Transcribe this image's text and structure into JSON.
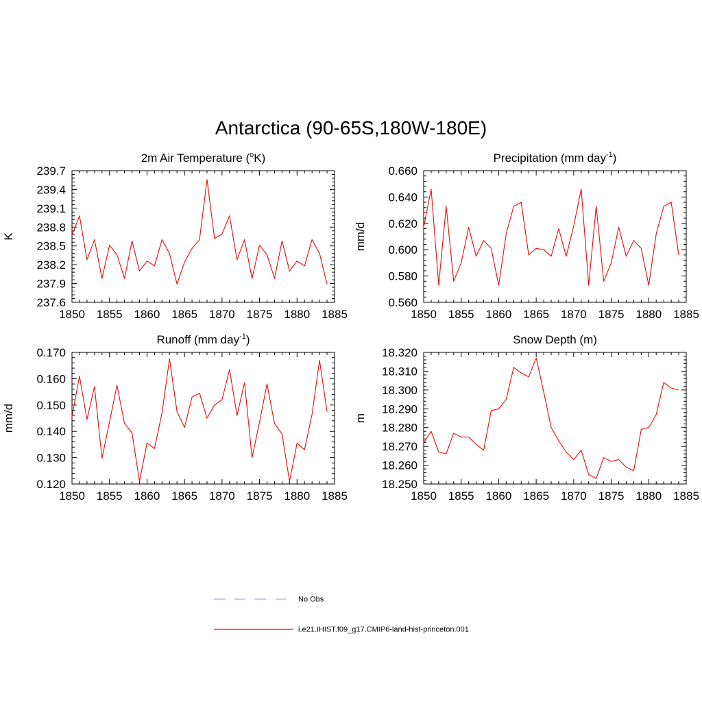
{
  "title": "Antarctica (90-65S,180W-180E)",
  "colors": {
    "model_line": "#ff0000",
    "obs_line": "#a0a0ff",
    "axis": "#000000"
  },
  "legend": {
    "entries": [
      {
        "label": "No Obs",
        "style": "dashed",
        "color": "#a0a0ff"
      },
      {
        "label": "i.e21.IHIST.f09_g17.CMIP6-land-hist-princeton.001",
        "style": "solid",
        "color": "#ff0000"
      }
    ]
  },
  "chart_data": [
    {
      "type": "line",
      "title": "2m Air Temperature (°K)",
      "title_parts": {
        "main": "2m Air Temperature (",
        "sup": "o",
        "tail": "K)"
      },
      "xlabel": "",
      "ylabel": "K",
      "xlim": [
        1850,
        1885
      ],
      "ylim": [
        237.6,
        239.7
      ],
      "xticks": [
        "1850",
        "1855",
        "1860",
        "1865",
        "1870",
        "1875",
        "1880",
        "1885"
      ],
      "yticks": [
        "237.6",
        "237.9",
        "238.2",
        "238.5",
        "238.8",
        "239.1",
        "239.4",
        "239.7"
      ],
      "x": [
        1850,
        1851,
        1852,
        1853,
        1854,
        1855,
        1856,
        1857,
        1858,
        1859,
        1860,
        1861,
        1862,
        1863,
        1864,
        1865,
        1866,
        1867,
        1868,
        1869,
        1870,
        1871,
        1872,
        1873,
        1874,
        1875,
        1876,
        1877,
        1878,
        1879,
        1880,
        1881,
        1882,
        1883,
        1884
      ],
      "series": [
        {
          "values": [
            238.67,
            238.98,
            238.28,
            238.6,
            237.98,
            238.51,
            238.36,
            237.98,
            238.58,
            238.1,
            238.26,
            238.18,
            238.6,
            238.38,
            237.89,
            238.24,
            238.46,
            238.6,
            239.56,
            238.62,
            238.69,
            238.98,
            238.28,
            238.6,
            237.98,
            238.51,
            238.36,
            237.98,
            238.58,
            238.1,
            238.26,
            238.18,
            238.6,
            238.38,
            237.89
          ]
        }
      ]
    },
    {
      "type": "line",
      "title": "Precipitation (mm day-1)",
      "title_parts": {
        "main": "Precipitation (mm day",
        "sup": "-1",
        "tail": ")"
      },
      "xlabel": "",
      "ylabel": "mm/d",
      "xlim": [
        1850,
        1885
      ],
      "ylim": [
        0.56,
        0.66
      ],
      "xticks": [
        "1850",
        "1855",
        "1860",
        "1865",
        "1870",
        "1875",
        "1880",
        "1885"
      ],
      "yticks": [
        "0.560",
        "0.580",
        "0.600",
        "0.620",
        "0.640",
        "0.660"
      ],
      "x": [
        1850,
        1851,
        1852,
        1853,
        1854,
        1855,
        1856,
        1857,
        1858,
        1859,
        1860,
        1861,
        1862,
        1863,
        1864,
        1865,
        1866,
        1867,
        1868,
        1869,
        1870,
        1871,
        1872,
        1873,
        1874,
        1875,
        1876,
        1877,
        1878,
        1879,
        1880,
        1881,
        1882,
        1883,
        1884
      ],
      "series": [
        {
          "values": [
            0.617,
            0.646,
            0.573,
            0.633,
            0.576,
            0.59,
            0.617,
            0.595,
            0.607,
            0.601,
            0.573,
            0.612,
            0.633,
            0.636,
            0.596,
            0.601,
            0.6,
            0.595,
            0.616,
            0.595,
            0.618,
            0.646,
            0.573,
            0.633,
            0.576,
            0.59,
            0.617,
            0.595,
            0.607,
            0.601,
            0.573,
            0.612,
            0.633,
            0.636,
            0.596
          ]
        }
      ]
    },
    {
      "type": "line",
      "title": "Runoff (mm day-1)",
      "title_parts": {
        "main": "Runoff (mm day",
        "sup": "-1",
        "tail": ")"
      },
      "xlabel": "",
      "ylabel": "mm/d",
      "xlim": [
        1850,
        1885
      ],
      "ylim": [
        0.12,
        0.17
      ],
      "xticks": [
        "1850",
        "1855",
        "1860",
        "1865",
        "1870",
        "1875",
        "1880",
        "1885"
      ],
      "yticks": [
        "0.120",
        "0.130",
        "0.140",
        "0.150",
        "0.160",
        "0.170"
      ],
      "x": [
        1850,
        1851,
        1852,
        1853,
        1854,
        1855,
        1856,
        1857,
        1858,
        1859,
        1860,
        1861,
        1862,
        1863,
        1864,
        1865,
        1866,
        1867,
        1868,
        1869,
        1870,
        1871,
        1872,
        1873,
        1874,
        1875,
        1876,
        1877,
        1878,
        1879,
        1880,
        1881,
        1882,
        1883,
        1884
      ],
      "series": [
        {
          "values": [
            0.1455,
            0.161,
            0.1445,
            0.157,
            0.1297,
            0.1435,
            0.1575,
            0.143,
            0.1395,
            0.121,
            0.1355,
            0.1335,
            0.147,
            0.1675,
            0.1475,
            0.1415,
            0.153,
            0.1545,
            0.145,
            0.15,
            0.152,
            0.1635,
            0.146,
            0.1585,
            0.13,
            0.1435,
            0.158,
            0.143,
            0.139,
            0.121,
            0.1355,
            0.133,
            0.1465,
            0.167,
            0.1475
          ]
        }
      ]
    },
    {
      "type": "line",
      "title": "Snow Depth (m)",
      "title_parts": {
        "main": "Snow Depth (m)",
        "sup": "",
        "tail": ""
      },
      "xlabel": "",
      "ylabel": "m",
      "xlim": [
        1850,
        1885
      ],
      "ylim": [
        18.25,
        18.32
      ],
      "xticks": [
        "1850",
        "1855",
        "1860",
        "1865",
        "1870",
        "1875",
        "1880",
        "1885"
      ],
      "yticks": [
        "18.250",
        "18.260",
        "18.270",
        "18.280",
        "18.290",
        "18.300",
        "18.310",
        "18.320"
      ],
      "x": [
        1850,
        1851,
        1852,
        1853,
        1854,
        1855,
        1856,
        1857,
        1858,
        1859,
        1860,
        1861,
        1862,
        1863,
        1864,
        1865,
        1866,
        1867,
        1868,
        1869,
        1870,
        1871,
        1872,
        1873,
        1874,
        1875,
        1876,
        1877,
        1878,
        1879,
        1880,
        1881,
        1882,
        1883,
        1884
      ],
      "series": [
        {
          "values": [
            18.272,
            18.278,
            18.267,
            18.266,
            18.277,
            18.275,
            18.275,
            18.271,
            18.268,
            18.289,
            18.29,
            18.295,
            18.312,
            18.309,
            18.307,
            18.317,
            18.299,
            18.28,
            18.273,
            18.267,
            18.263,
            18.268,
            18.255,
            18.253,
            18.264,
            18.262,
            18.263,
            18.259,
            18.257,
            18.279,
            18.28,
            18.287,
            18.304,
            18.301,
            18.3
          ]
        }
      ]
    }
  ]
}
